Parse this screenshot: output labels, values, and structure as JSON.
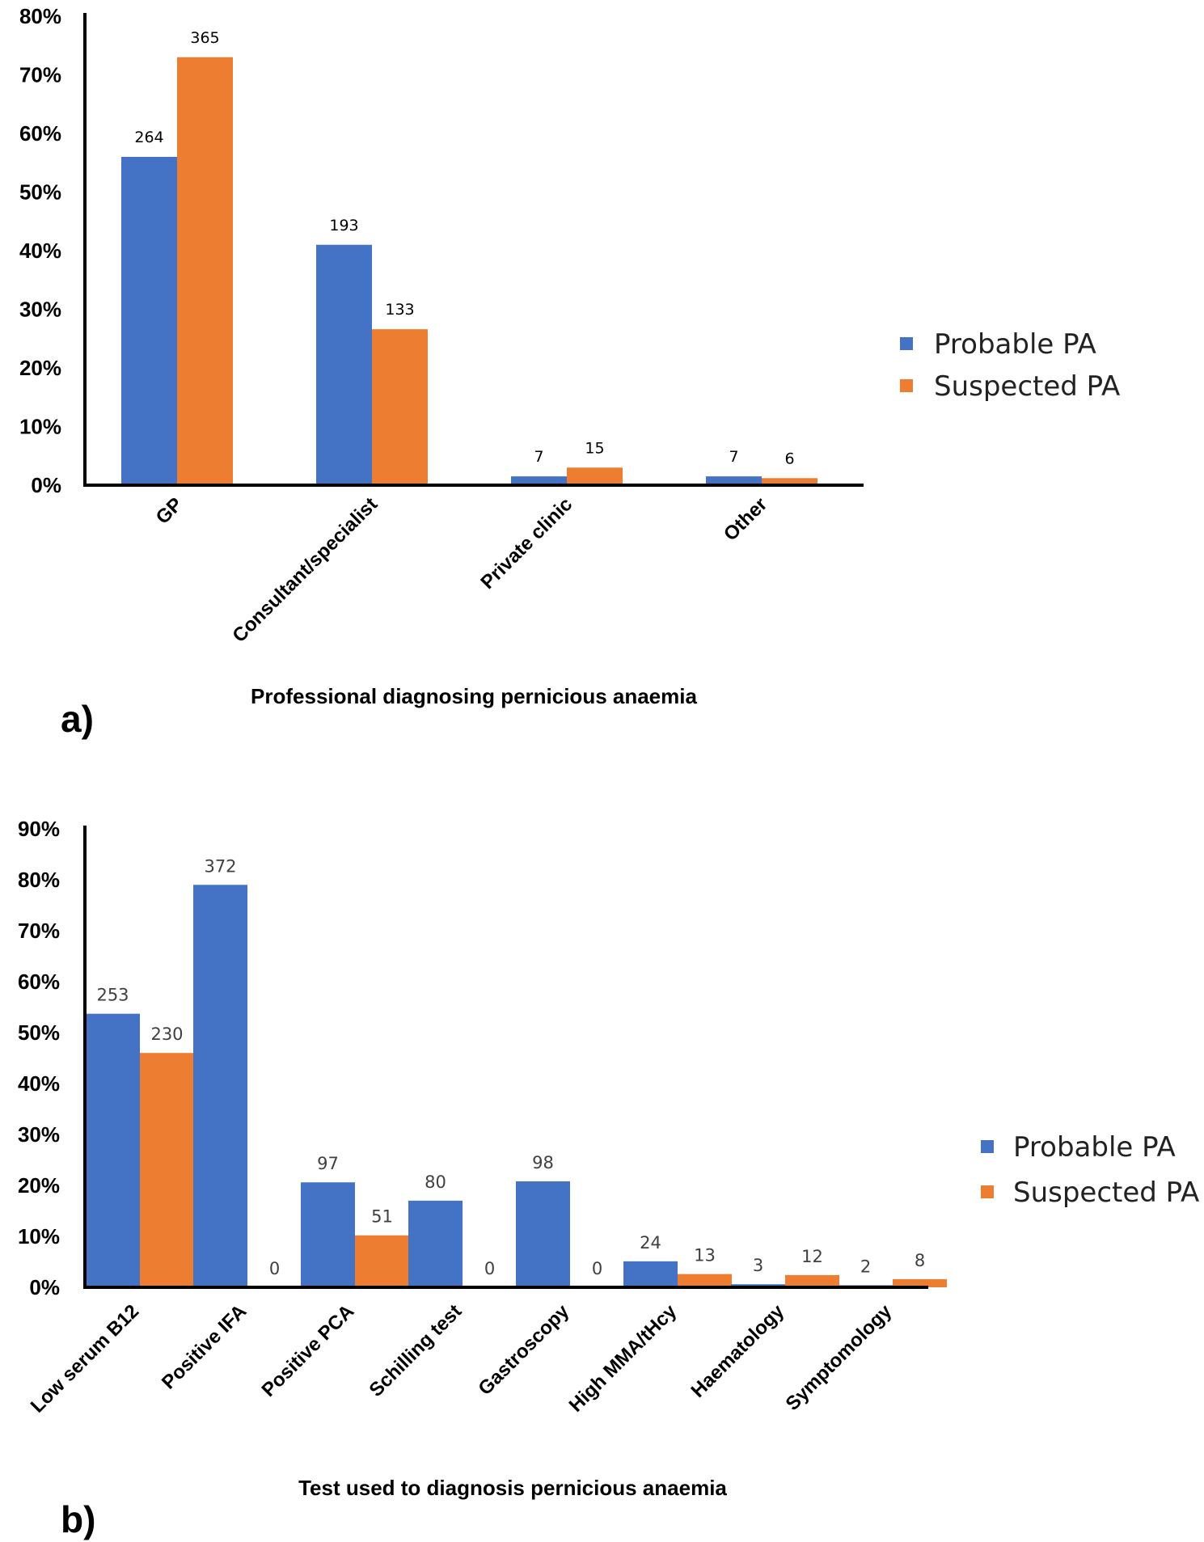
{
  "chart_data": [
    {
      "type": "bar",
      "panel_label": "a)",
      "xlabel": "Professional diagnosing pernicious anaemia",
      "ylabel": "",
      "ylim": [
        0,
        80
      ],
      "yticks": [
        "0%",
        "10%",
        "20%",
        "30%",
        "40%",
        "50%",
        "60%",
        "70%",
        "80%"
      ],
      "categories": [
        "GP",
        "Consultant/specialist",
        "Private clinic",
        "Other"
      ],
      "series": [
        {
          "name": "Probable PA",
          "color": "#4472C4",
          "values": [
            56,
            41,
            1.5,
            1.5
          ],
          "labels": [
            "264",
            "193",
            "7",
            "7"
          ]
        },
        {
          "name": "Suspected PA",
          "color": "#ED7D31",
          "values": [
            73,
            26.6,
            3,
            1.2
          ],
          "labels": [
            "365",
            "133",
            "15",
            "6"
          ]
        }
      ],
      "legend": "right",
      "grid": false
    },
    {
      "type": "bar",
      "panel_label": "b)",
      "xlabel": "Test used to diagnosis pernicious anaemia",
      "ylabel": "",
      "ylim": [
        0,
        90
      ],
      "yticks": [
        "0%",
        "10%",
        "20%",
        "30%",
        "40%",
        "50%",
        "60%",
        "70%",
        "80%",
        "90%"
      ],
      "categories": [
        "Low serum B12",
        "Positive IFA",
        "Positive PCA",
        "Schilling test",
        "Gastroscopy",
        "High MMA/tHcy",
        "Haematology",
        "Symptomology"
      ],
      "series": [
        {
          "name": "Probable PA",
          "color": "#4472C4",
          "values": [
            53.7,
            79,
            20.6,
            17,
            20.8,
            5.1,
            0.6,
            0.4
          ],
          "labels": [
            "253",
            "372",
            "97",
            "80",
            "98",
            "24",
            "3",
            "2"
          ]
        },
        {
          "name": "Suspected PA",
          "color": "#ED7D31",
          "values": [
            46,
            0,
            10.2,
            0,
            0,
            2.6,
            2.4,
            1.6
          ],
          "labels": [
            "230",
            "0",
            "51",
            "0",
            "0",
            "13",
            "12",
            "8"
          ]
        }
      ],
      "legend": "right",
      "grid": false
    }
  ]
}
